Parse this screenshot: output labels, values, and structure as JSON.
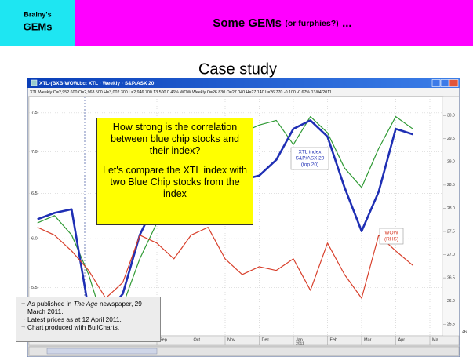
{
  "header": {
    "brand_line1": "Brainy's",
    "brand_line2": "GEMs",
    "title_main": "Some GEMs",
    "title_sub": "(or furphies?)",
    "title_tail": "..."
  },
  "slide_title": "Case study",
  "window": {
    "title": "XTL-(BXB-WOW.bc: XTL · Weekly · S&P/ASX 20",
    "info": "XTL Weekly  O=2,952.600 O=2,968.500 H=3,002.300 L=2,946.700  13.500  0.46%    WOW Weekly  O=26.830 O=27.040 H=27.140 L=26.770  -0.100  -0.67%    13/04/2011"
  },
  "chart_data": {
    "type": "line",
    "log_scale": true,
    "grid": true,
    "categories": [
      null,
      null,
      null,
      null,
      null,
      null,
      null,
      "Sep",
      null,
      "Oct",
      null,
      "Nov",
      null,
      "Dec",
      null,
      "Jan",
      null,
      "Feb",
      null,
      "Mar",
      null,
      "Apr",
      null,
      "Ma"
    ],
    "x_year_label": "2011",
    "series": [
      {
        "color": "#2f9a34",
        "values": [
          6.17,
          6.25,
          6.04,
          5.63,
          5.11,
          5.33,
          5.79,
          6.17,
          6.48,
          6.8,
          6.95,
          7.14,
          7.24,
          7.34,
          7.4,
          7.09,
          7.45,
          7.24,
          6.8,
          6.57,
          7.04,
          7.45,
          7.29,
          null
        ]
      },
      {
        "name": "XTL index",
        "color": "#1f2fb4",
        "values": [
          6.21,
          6.28,
          6.32,
          5.29,
          5.25,
          5.44,
          6.04,
          6.43,
          6.71,
          6.95,
          6.85,
          6.57,
          6.66,
          6.71,
          6.9,
          7.29,
          7.4,
          7.19,
          6.57,
          6.08,
          6.52,
          7.29,
          7.22,
          null
        ]
      },
      {
        "name": "WOW",
        "axis": "y2",
        "color": "#d8402c",
        "values": [
          27.59,
          27.42,
          27.08,
          26.66,
          26.06,
          26.4,
          27.42,
          27.25,
          26.91,
          27.42,
          27.59,
          26.91,
          26.57,
          26.74,
          26.66,
          26.91,
          26.23,
          27.25,
          26.57,
          26.06,
          27.42,
          27.08,
          26.77,
          null
        ]
      }
    ],
    "ylim": [
      5.05,
      7.72
    ],
    "yticks": [
      5.5,
      {
        "value": 6,
        "label": "6.0"
      },
      6.5,
      {
        "value": 7,
        "label": "7.0"
      },
      7.5
    ],
    "y2lim": [
      25.25,
      30.41
    ],
    "y2ticks": [
      25.5,
      {
        "value": 26,
        "label": "26.0"
      },
      26.5,
      {
        "value": 27,
        "label": "27.0"
      },
      27.5,
      {
        "value": 28,
        "label": "28.0"
      },
      28.5,
      {
        "value": 29,
        "label": "29.0"
      },
      29.5,
      {
        "value": 30,
        "label": "30.0"
      }
    ],
    "tags": [
      {
        "lines": [
          "XTL index",
          "S&P/ASX 20",
          "(top 20)"
        ]
      },
      {
        "lines": [
          "WOW",
          "(RHS)"
        ]
      }
    ]
  },
  "callout": {
    "question": "How strong is the correlation between blue chip stocks and their index?",
    "proposal": "Let's compare the XTL index with two Blue Chip stocks from the index"
  },
  "note": {
    "items": [
      {
        "before": "As published in ",
        "italic": "The Age",
        "after": " newspaper, 29 March 2011."
      },
      {
        "text": "Latest prices as at 12 April 2011."
      },
      {
        "text": "Chart produced with BullCharts."
      }
    ]
  },
  "page_number": "46"
}
